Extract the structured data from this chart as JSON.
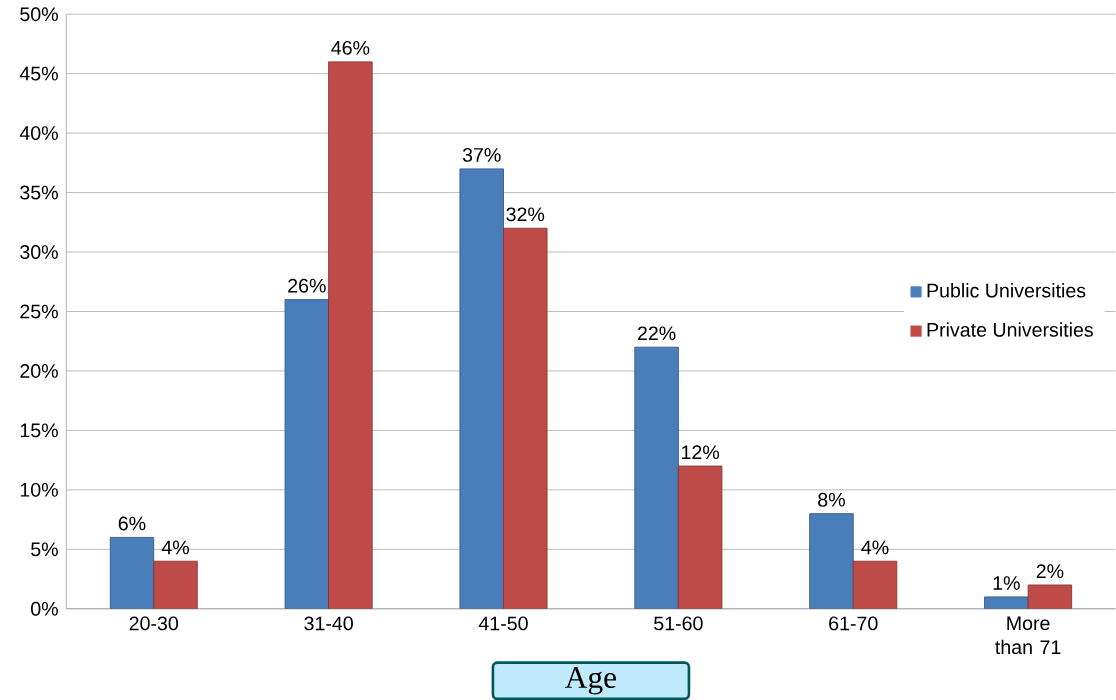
{
  "chart_data": {
    "type": "bar",
    "xlabel": "Age",
    "categories": [
      "20-30",
      "31-40",
      "41-50",
      "51-60",
      "61-70",
      "More than 71"
    ],
    "series": [
      {
        "name": "Public Universities",
        "color": "#4a7ebb",
        "values": [
          6,
          26,
          37,
          22,
          8,
          1
        ],
        "value_labels": [
          "6%",
          "26%",
          "37%",
          "22%",
          "8%",
          "1%"
        ]
      },
      {
        "name": "Private Universities",
        "color": "#be4b48",
        "values": [
          4,
          46,
          32,
          12,
          4,
          2
        ],
        "value_labels": [
          "4%",
          "46%",
          "32%",
          "12%",
          "4%",
          "2%"
        ]
      }
    ],
    "ylim": [
      0,
      50
    ],
    "yticks": [
      {
        "value": 0,
        "label": "0%"
      },
      {
        "value": 5,
        "label": "5%"
      },
      {
        "value": 10,
        "label": "10%"
      },
      {
        "value": 15,
        "label": "15%"
      },
      {
        "value": 20,
        "label": "20%"
      },
      {
        "value": 25,
        "label": "25%"
      },
      {
        "value": 30,
        "label": "30%"
      },
      {
        "value": 35,
        "label": "35%"
      },
      {
        "value": 40,
        "label": "40%"
      },
      {
        "value": 45,
        "label": "45%"
      },
      {
        "value": 50,
        "label": "50%"
      }
    ],
    "grid": "y",
    "legend": "right"
  }
}
